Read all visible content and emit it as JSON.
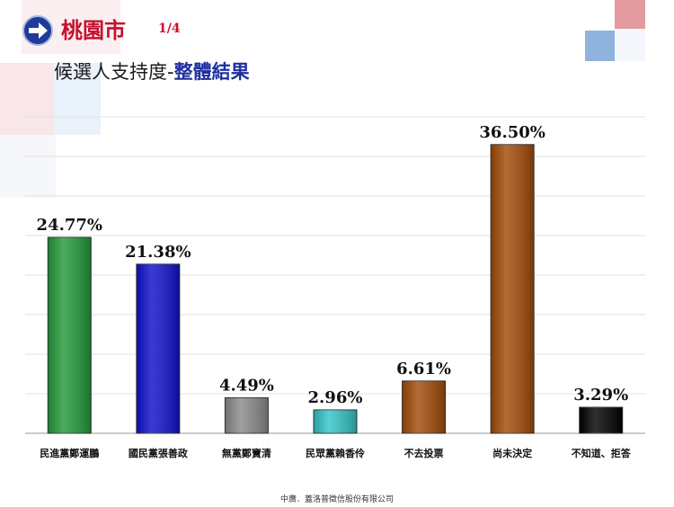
{
  "header": {
    "city": "桃園市",
    "page": "1/4",
    "subtitle_prefix": "候選人支持度-",
    "subtitle_highlight": "整體結果"
  },
  "footer": "中廣．蓋洛普徵信股份有限公司",
  "colors": {
    "title": "#c8102e",
    "highlight": "#1f2f9f",
    "deco_red": "#e29a9e",
    "deco_blue": "#8fb3dc"
  },
  "chart_data": {
    "type": "bar",
    "title": "",
    "xlabel": "",
    "ylabel": "",
    "ylim": [
      0,
      40
    ],
    "grid": true,
    "categories": [
      "民進黨鄭運鵬",
      "國民黨張善政",
      "無黨鄭寶清",
      "民眾黨賴香伶",
      "不去投票",
      "尚未決定",
      "不知道、拒答"
    ],
    "values": [
      24.77,
      21.38,
      4.49,
      2.96,
      6.61,
      36.5,
      3.29
    ],
    "labels": [
      "24.77%",
      "21.38%",
      "4.49%",
      "2.96%",
      "6.61%",
      "36.50%",
      "3.29%"
    ],
    "colors": [
      "#229a3a",
      "#1010cc",
      "#8a8a8a",
      "#33c4c8",
      "#a34a08",
      "#a34a08",
      "#000000"
    ]
  }
}
